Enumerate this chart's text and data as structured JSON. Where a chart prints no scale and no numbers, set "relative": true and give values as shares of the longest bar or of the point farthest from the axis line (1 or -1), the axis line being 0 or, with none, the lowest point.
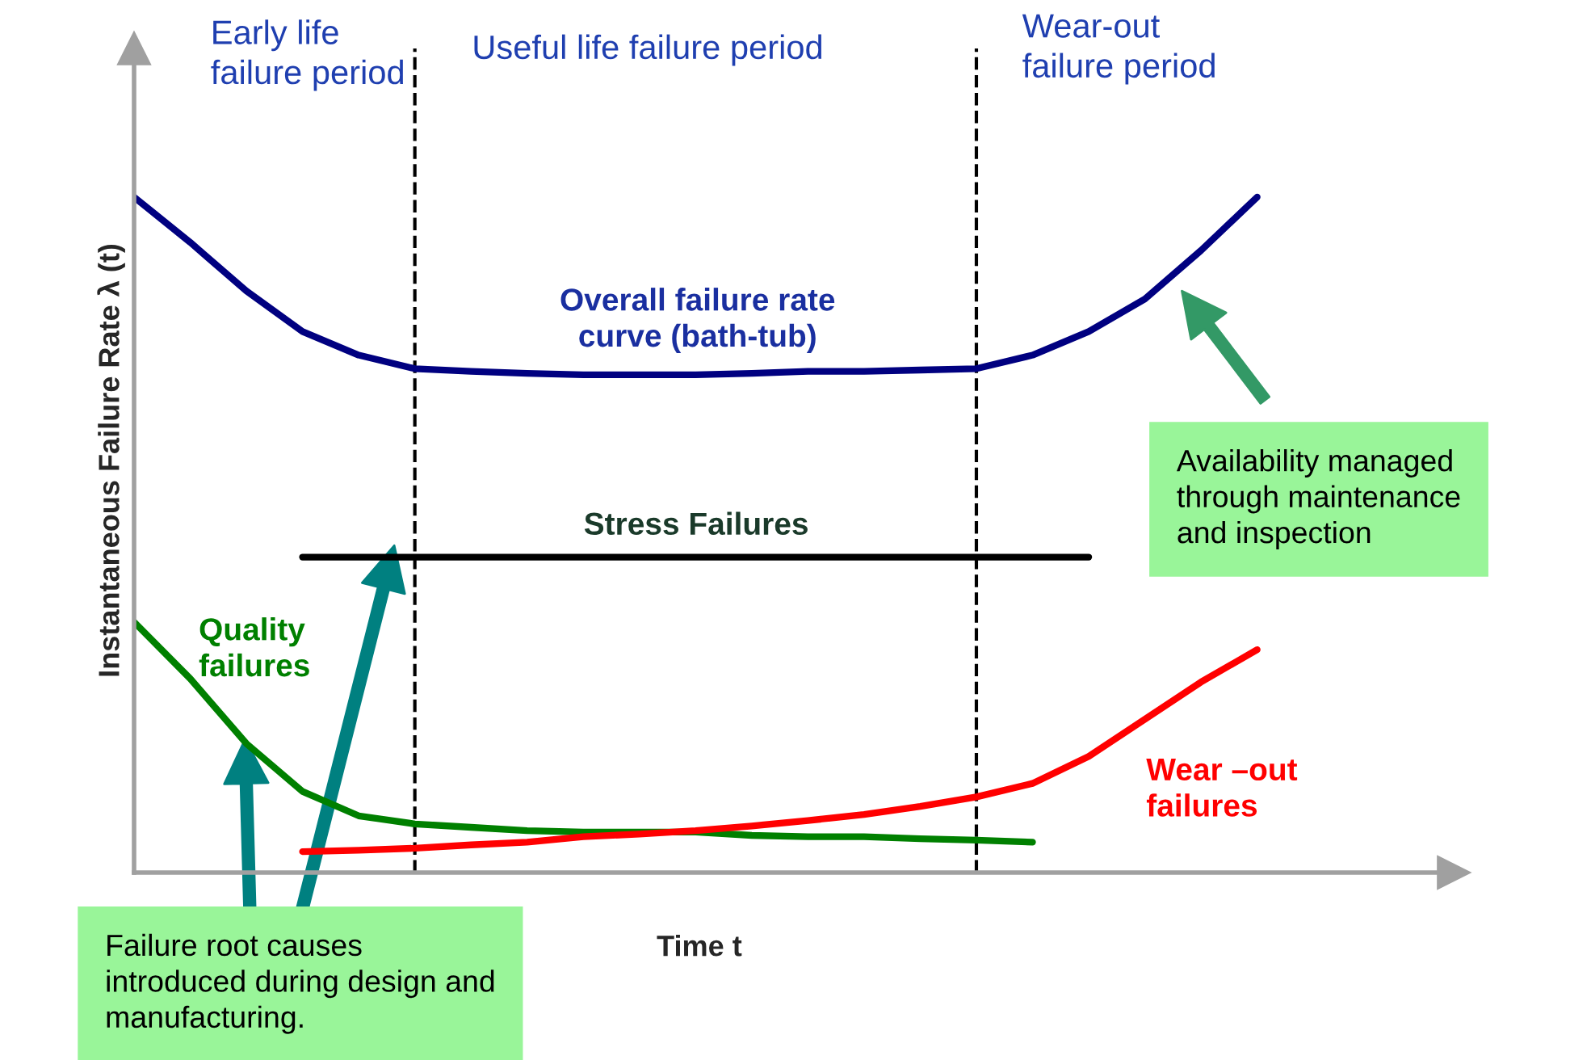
{
  "chart_data": {
    "type": "line",
    "relative": true,
    "xlabel": "Time t",
    "ylabel": "Instantaneous Failure Rate λ (t)",
    "categories": [
      null,
      null,
      null,
      null,
      null,
      null,
      null,
      null,
      null,
      null,
      null,
      null,
      null,
      null,
      null,
      null,
      null,
      null,
      null,
      null,
      null
    ],
    "series": [
      {
        "name": "Overall failure rate\ncurve (bath-tub)",
        "color": "#000080",
        "values": [
          1.0,
          0.933,
          0.861,
          0.801,
          0.766,
          0.746,
          0.742,
          0.739,
          0.737,
          0.737,
          0.737,
          0.739,
          0.742,
          0.742,
          0.744,
          0.746,
          0.766,
          0.801,
          0.849,
          0.921,
          1.0
        ]
      },
      {
        "name": "Stress Failures",
        "color": "#000000",
        "values": [
          null,
          null,
          null,
          0.467,
          0.467,
          0.467,
          0.467,
          0.467,
          0.467,
          0.467,
          0.467,
          0.467,
          0.467,
          0.467,
          0.467,
          0.467,
          0.467,
          0.467,
          null,
          null,
          null
        ]
      },
      {
        "name": "Quality\nfailures",
        "color": "#008000",
        "values": [
          0.371,
          0.287,
          0.191,
          0.12,
          0.084,
          0.072,
          0.067,
          0.062,
          0.06,
          0.06,
          0.06,
          0.055,
          0.053,
          0.053,
          0.05,
          0.048,
          0.045,
          null,
          null,
          null,
          null
        ]
      },
      {
        "name": "Wear –out\nfailures",
        "color": "#ff0000",
        "values": [
          null,
          null,
          null,
          0.031,
          0.033,
          0.036,
          0.041,
          0.045,
          0.053,
          0.057,
          0.062,
          0.069,
          0.077,
          0.086,
          0.098,
          0.112,
          0.132,
          0.172,
          0.227,
          0.282,
          0.33
        ]
      }
    ],
    "annotations": [
      "Early life\nfailure period",
      "Useful life failure period",
      "Wear-out\nfailure period",
      "Availability managed\nthrough maintenance\nand inspection",
      "Failure root causes\nintroduced during design and\nmanufacturing."
    ],
    "legend": false,
    "marker": "none",
    "line_style": "solid"
  }
}
